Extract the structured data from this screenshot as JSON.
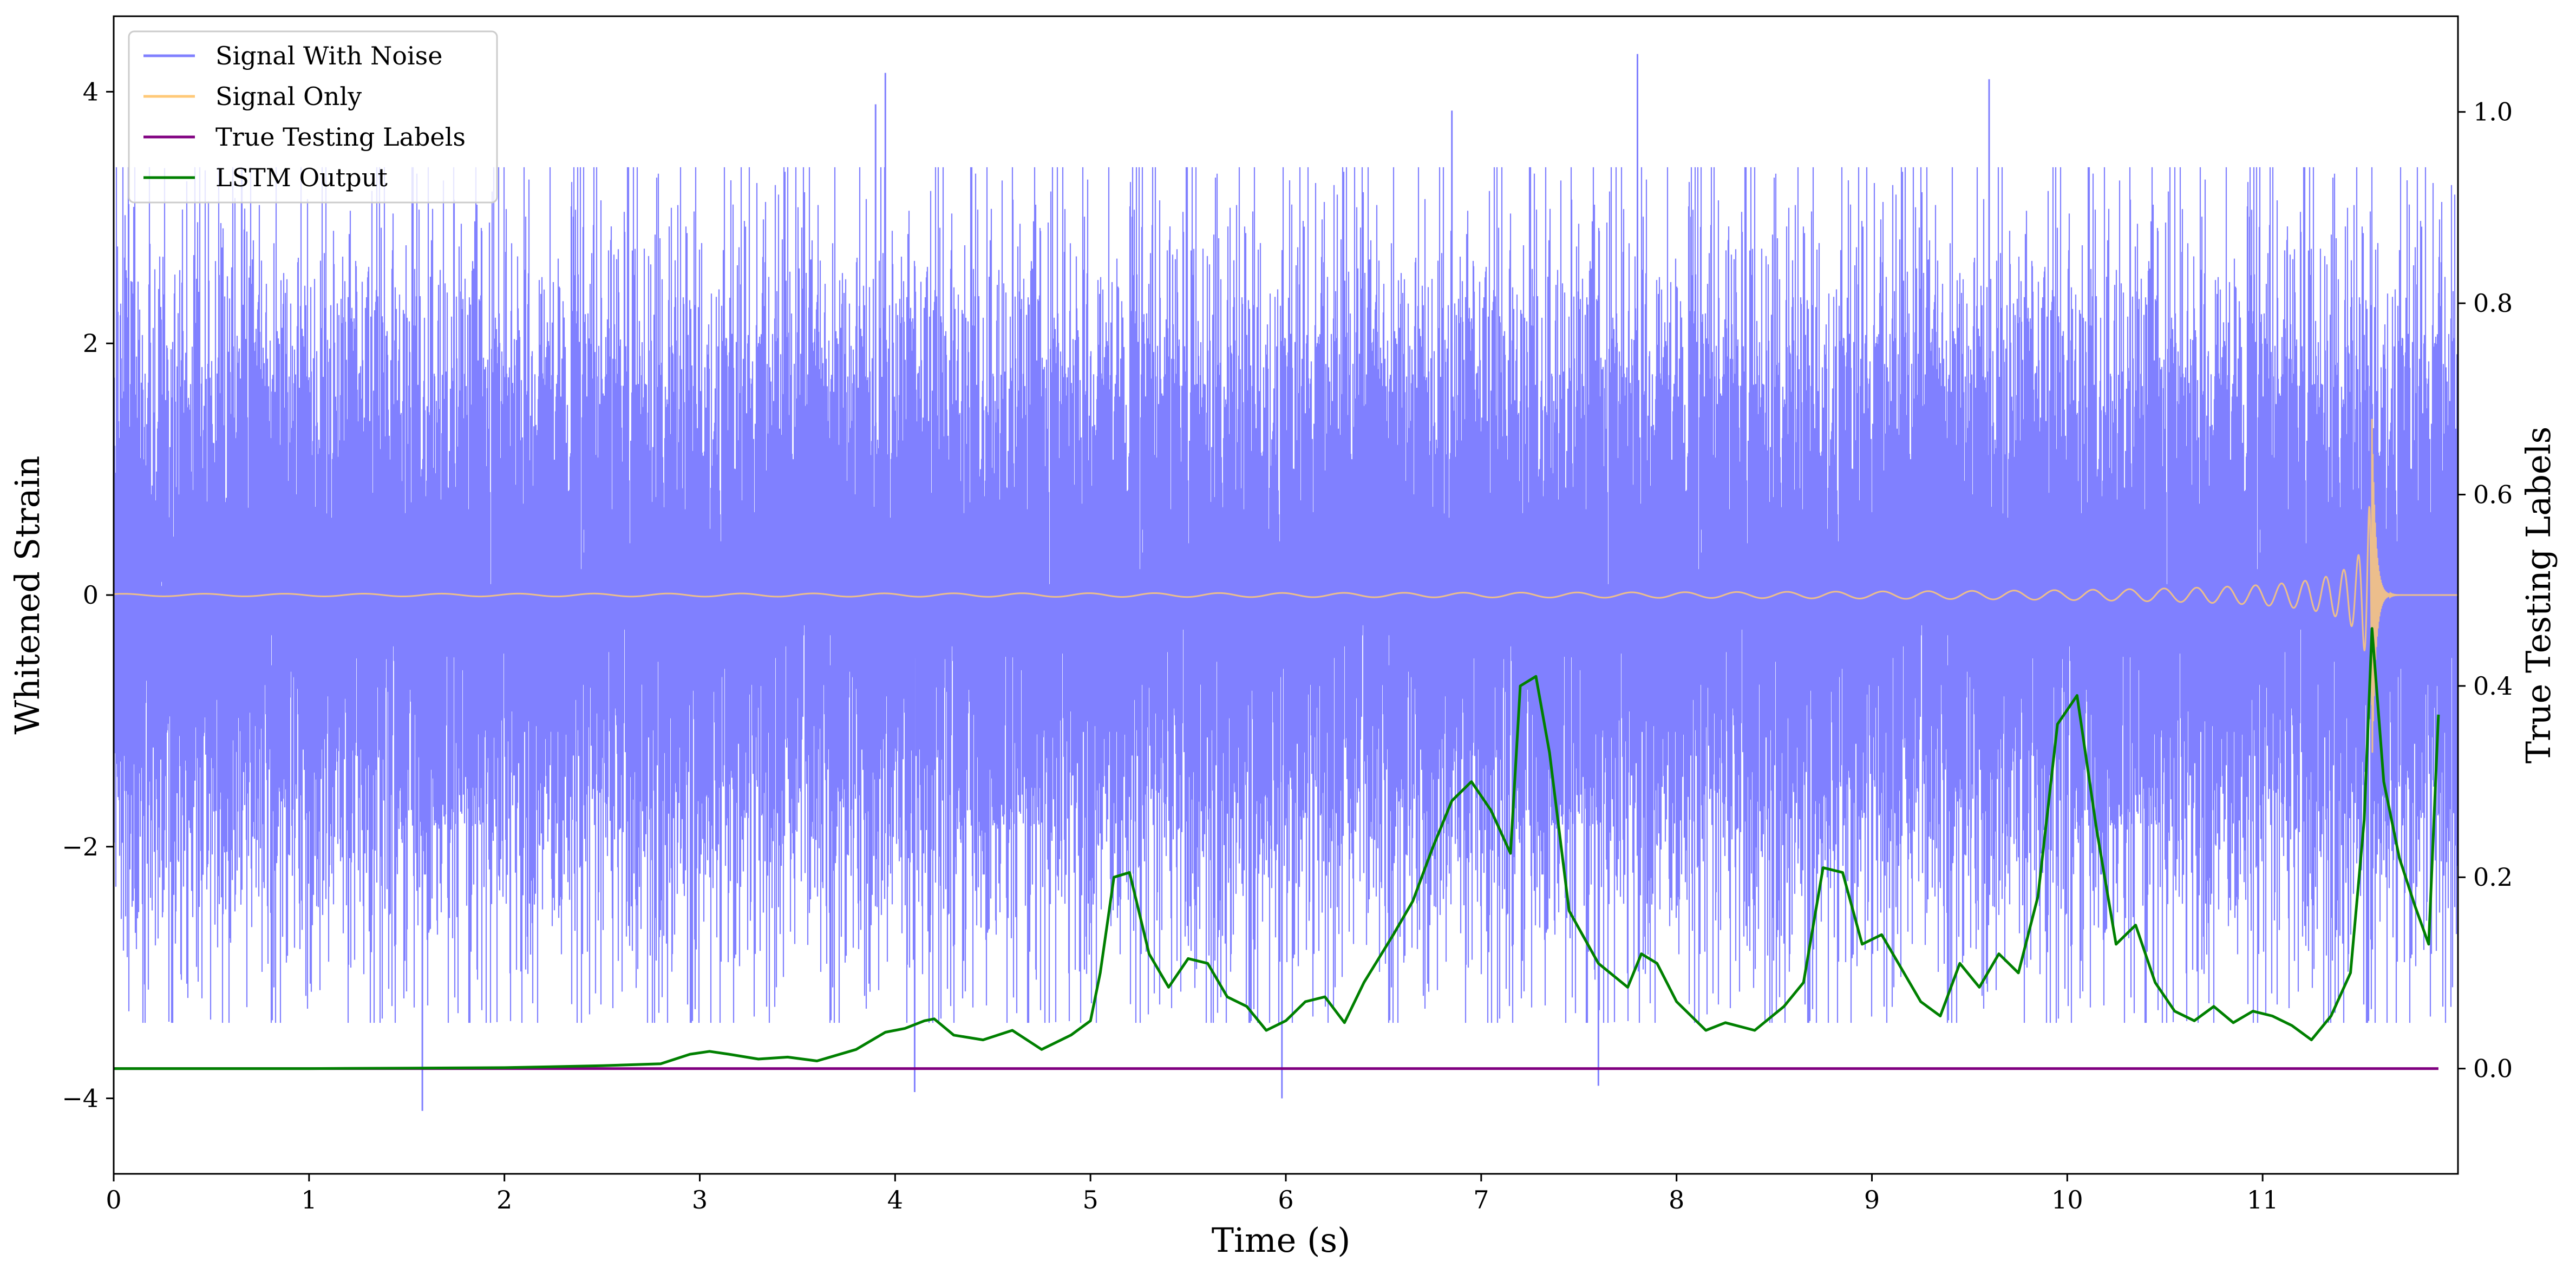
{
  "chart_data": {
    "type": "line",
    "xlabel": "Time (s)",
    "ylabel": "Whitened Strain",
    "y2label": "True Testing Labels",
    "xlim": [
      0,
      12
    ],
    "ylim": [
      -4.6,
      4.6
    ],
    "y2lim": [
      -0.11,
      1.1
    ],
    "x_ticks": [
      0,
      1,
      2,
      3,
      4,
      5,
      6,
      7,
      8,
      9,
      10,
      11
    ],
    "y_ticks": [
      -4,
      -2,
      0,
      2,
      4
    ],
    "y2_ticks": [
      0.0,
      0.2,
      0.4,
      0.6,
      0.8,
      1.0
    ],
    "grid": false,
    "legend_position": "top-left",
    "colors": {
      "noise": "#8080ff",
      "signal": "#ffc978",
      "labels": "#800080",
      "lstm": "#008000"
    },
    "series": [
      {
        "name": "Signal With Noise",
        "axis": "left",
        "description_kind": "noise",
        "approx_std": 1.0,
        "x_range": [
          0,
          12
        ],
        "notable_peaks": [
          {
            "x": 3.9,
            "y": 3.9
          },
          {
            "x": 3.95,
            "y": 4.15
          },
          {
            "x": 7.8,
            "y": 4.3
          },
          {
            "x": 9.6,
            "y": 4.1
          },
          {
            "x": 6.85,
            "y": 3.85
          },
          {
            "x": 1.58,
            "y": -4.1
          },
          {
            "x": 4.1,
            "y": -3.95
          },
          {
            "x": 5.98,
            "y": -4.0
          },
          {
            "x": 7.6,
            "y": -3.9
          }
        ]
      },
      {
        "name": "Signal Only",
        "axis": "left",
        "description_kind": "chirp",
        "x_range": [
          0,
          12
        ],
        "merger_time": 11.56,
        "peak_amplitude": 1.4
      },
      {
        "name": "True Testing Labels",
        "axis": "right",
        "x": [
          0.0,
          11.9
        ],
        "y": [
          0.0,
          0.0
        ]
      },
      {
        "name": "LSTM Output",
        "axis": "right",
        "x": [
          0.0,
          1.0,
          2.0,
          2.5,
          2.8,
          2.95,
          3.05,
          3.15,
          3.3,
          3.45,
          3.6,
          3.8,
          3.95,
          4.05,
          4.15,
          4.2,
          4.3,
          4.45,
          4.6,
          4.75,
          4.9,
          5.0,
          5.05,
          5.12,
          5.2,
          5.3,
          5.4,
          5.5,
          5.6,
          5.7,
          5.8,
          5.9,
          6.0,
          6.1,
          6.2,
          6.3,
          6.4,
          6.55,
          6.65,
          6.75,
          6.85,
          6.95,
          7.05,
          7.15,
          7.2,
          7.28,
          7.35,
          7.45,
          7.6,
          7.75,
          7.82,
          7.9,
          8.0,
          8.15,
          8.25,
          8.4,
          8.55,
          8.65,
          8.75,
          8.85,
          8.95,
          9.05,
          9.15,
          9.25,
          9.35,
          9.45,
          9.55,
          9.65,
          9.75,
          9.85,
          9.95,
          10.05,
          10.15,
          10.25,
          10.35,
          10.45,
          10.55,
          10.65,
          10.75,
          10.85,
          10.95,
          11.05,
          11.15,
          11.25,
          11.35,
          11.45,
          11.52,
          11.56,
          11.62,
          11.7,
          11.78,
          11.85,
          11.9
        ],
        "y": [
          0.0,
          0.0,
          0.001,
          0.003,
          0.005,
          0.015,
          0.018,
          0.015,
          0.01,
          0.012,
          0.008,
          0.02,
          0.038,
          0.042,
          0.05,
          0.052,
          0.035,
          0.03,
          0.04,
          0.02,
          0.035,
          0.05,
          0.1,
          0.2,
          0.205,
          0.12,
          0.085,
          0.115,
          0.11,
          0.075,
          0.065,
          0.04,
          0.05,
          0.07,
          0.075,
          0.048,
          0.09,
          0.14,
          0.175,
          0.23,
          0.28,
          0.3,
          0.27,
          0.225,
          0.4,
          0.41,
          0.33,
          0.165,
          0.11,
          0.085,
          0.12,
          0.11,
          0.07,
          0.04,
          0.048,
          0.04,
          0.065,
          0.09,
          0.21,
          0.205,
          0.13,
          0.14,
          0.105,
          0.07,
          0.055,
          0.11,
          0.085,
          0.12,
          0.1,
          0.18,
          0.36,
          0.39,
          0.25,
          0.13,
          0.15,
          0.09,
          0.06,
          0.05,
          0.065,
          0.048,
          0.06,
          0.055,
          0.045,
          0.03,
          0.055,
          0.1,
          0.26,
          0.46,
          0.3,
          0.22,
          0.17,
          0.13,
          0.37
        ]
      }
    ]
  },
  "legend": {
    "items": [
      "Signal With Noise",
      "Signal Only",
      "True Testing Labels",
      "LSTM Output"
    ]
  }
}
